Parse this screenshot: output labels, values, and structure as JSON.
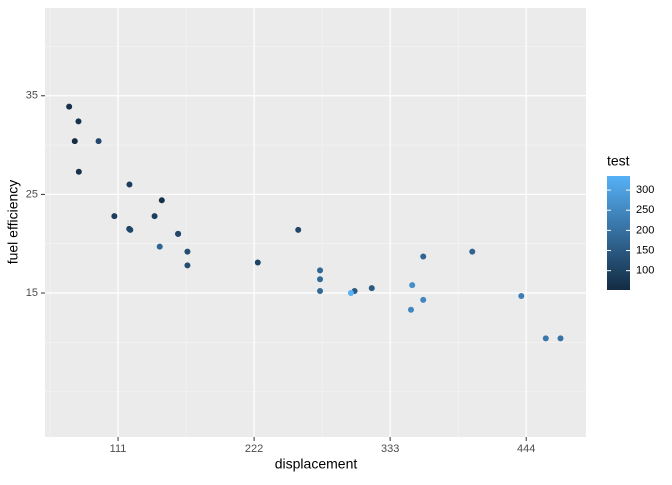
{
  "chart_data": {
    "type": "scatter",
    "x_label": "displacement",
    "y_label": "fuel efficiency",
    "x": [
      160,
      160,
      108,
      258,
      360,
      225,
      360,
      146.7,
      140.8,
      167.6,
      167.6,
      275.8,
      275.8,
      275.8,
      472,
      460,
      440,
      78.7,
      75.7,
      71.1,
      120.1,
      318,
      304,
      350,
      400,
      79,
      120.3,
      95.1,
      351,
      145,
      301,
      121
    ],
    "values": [
      21.0,
      21.0,
      22.8,
      21.4,
      18.7,
      18.1,
      14.3,
      24.4,
      22.8,
      19.2,
      17.8,
      16.4,
      17.3,
      15.2,
      10.4,
      10.4,
      14.7,
      32.4,
      30.4,
      33.9,
      21.5,
      15.5,
      15.2,
      13.3,
      19.2,
      27.3,
      26.0,
      30.4,
      15.8,
      19.7,
      15.0,
      21.4
    ],
    "color_values": [
      110,
      110,
      93,
      110,
      175,
      105,
      245,
      62,
      95,
      123,
      123,
      180,
      180,
      180,
      205,
      215,
      230,
      66,
      52,
      65,
      97,
      150,
      150,
      245,
      175,
      66,
      91,
      113,
      264,
      175,
      335,
      109
    ],
    "color_name": "test",
    "color_low": "#132B43",
    "color_high": "#56B1F7",
    "color_lim": [
      52,
      335
    ],
    "color_ticks": [
      100,
      150,
      200,
      250,
      300
    ],
    "xlim": [
      51.4,
      492.8
    ],
    "xticks": [
      111,
      222,
      333,
      444
    ],
    "xminor": [
      55.5,
      166.5,
      277.5,
      388.5
    ],
    "ylim": [
      0.4,
      43.9
    ],
    "yticks": [
      15,
      25,
      35
    ],
    "yminor": [
      5,
      10,
      20,
      30,
      40
    ],
    "grid": true
  }
}
